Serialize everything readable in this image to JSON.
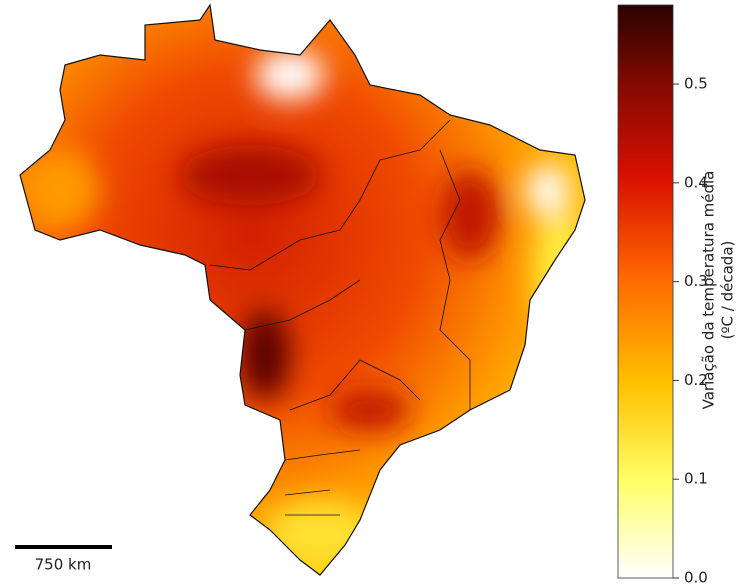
{
  "map": {
    "scale_bar": {
      "label": "750 km"
    },
    "colorbar": {
      "label": [
        "Variação da temperatura média",
        "(ºC / década)"
      ],
      "lim": [
        0,
        0.58
      ],
      "ticks": [
        {
          "value": 0,
          "label": "0.0"
        },
        0.1,
        0.2,
        0.3,
        0.4,
        0.5
      ]
    }
  }
}
